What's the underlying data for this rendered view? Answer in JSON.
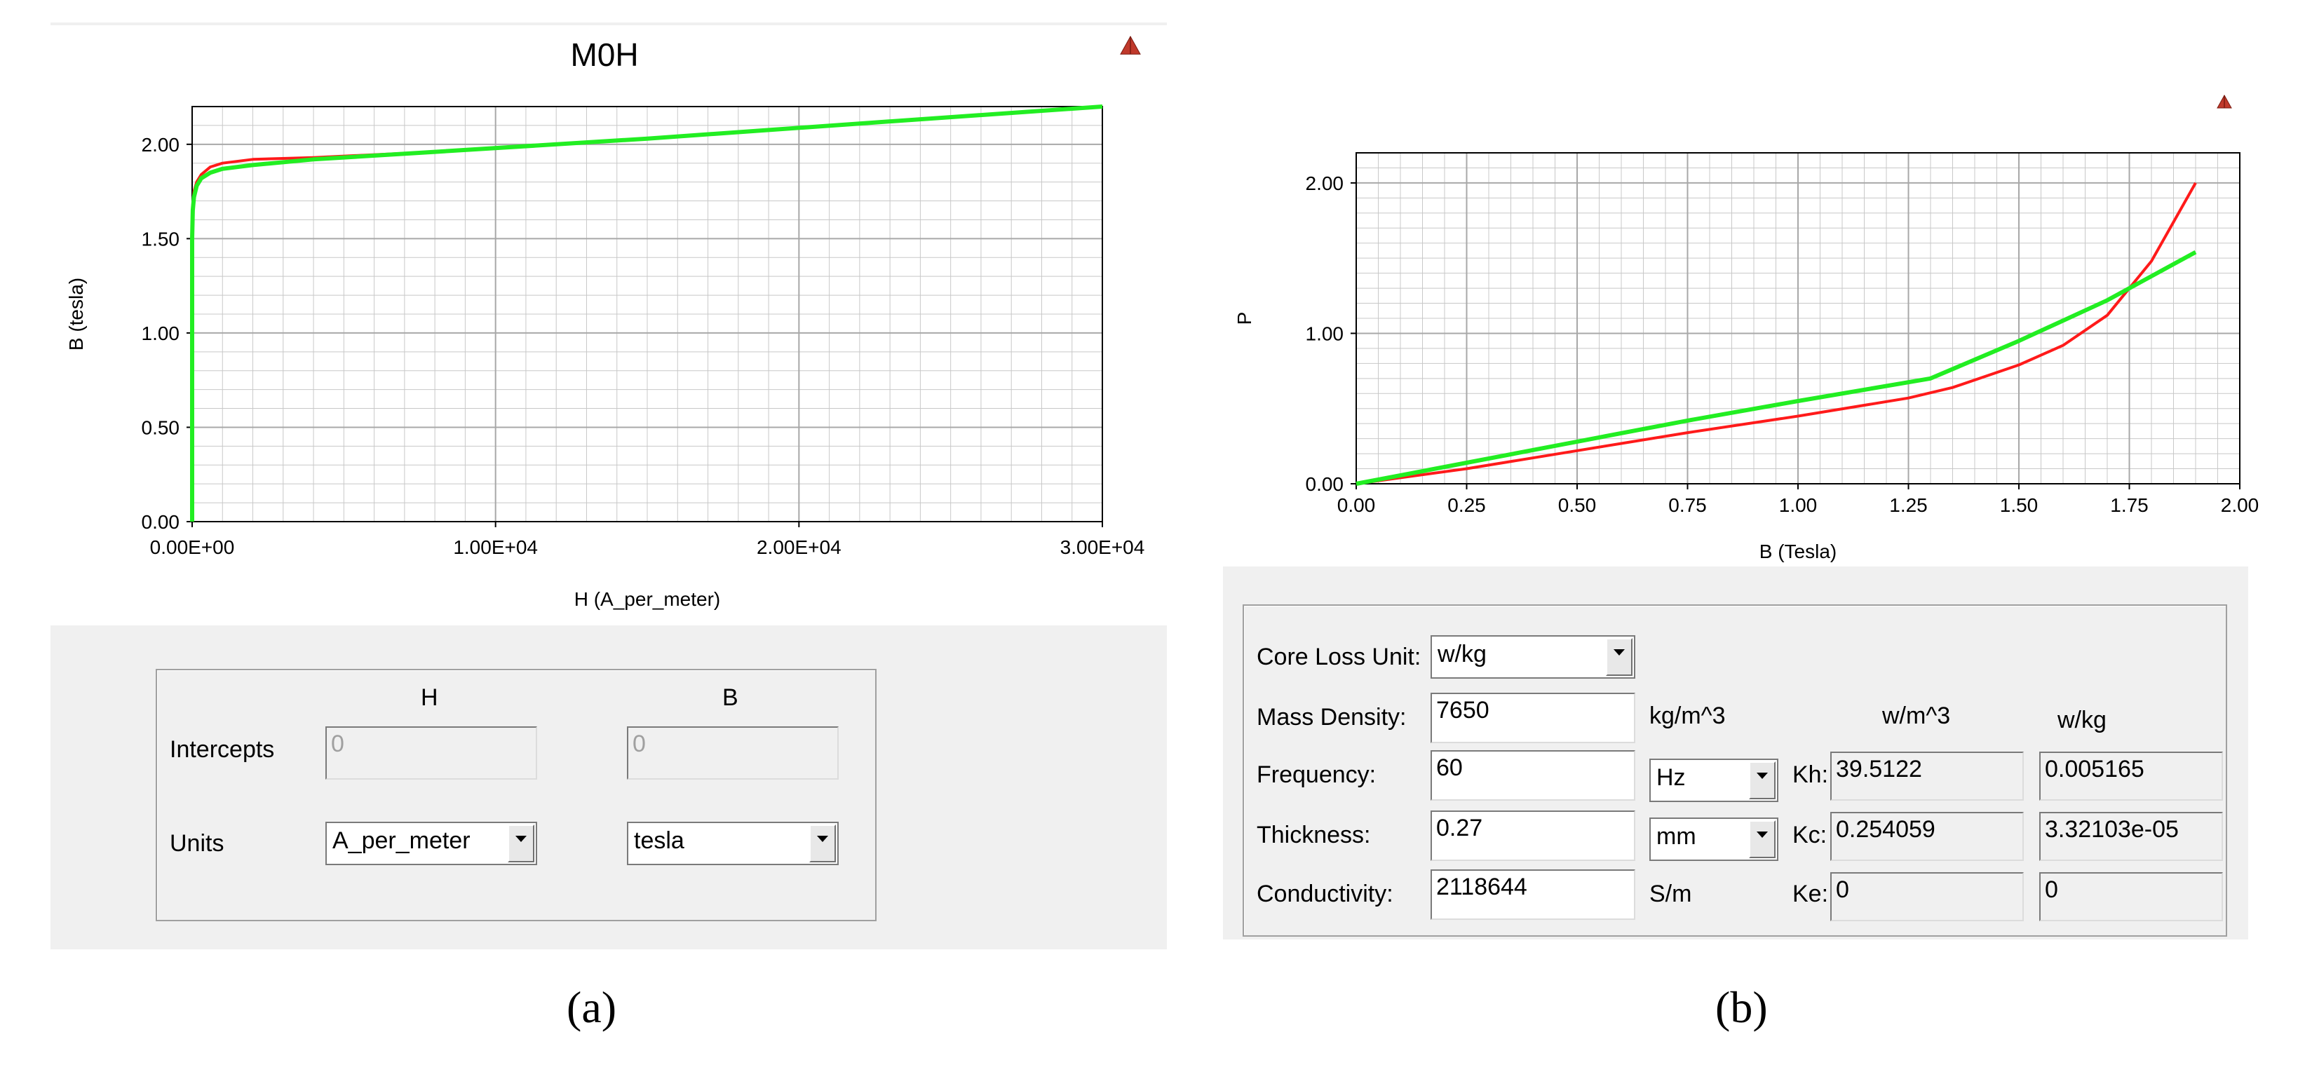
{
  "panel_a": {
    "title": "M0H",
    "caption": "(a)",
    "chart_data": {
      "type": "line",
      "title": "M0H",
      "xlabel": "H (A_per_meter)",
      "ylabel": "B (tesla)",
      "xlim": [
        0,
        30000
      ],
      "ylim": [
        0,
        2.2
      ],
      "xticks": [
        "0.00E+00",
        "1.00E+04",
        "2.00E+04",
        "3.00E+04"
      ],
      "yticks": [
        "0.00",
        "0.50",
        "1.00",
        "1.50",
        "2.00"
      ],
      "grid": true,
      "series": [
        {
          "color": "#ff1a1a",
          "x": [
            0,
            0,
            20,
            60,
            150,
            300,
            600,
            1000,
            2000,
            4000,
            8000,
            15000,
            22000,
            30000
          ],
          "y": [
            0,
            1.5,
            1.68,
            1.75,
            1.8,
            1.84,
            1.88,
            1.9,
            1.92,
            1.93,
            1.96,
            2.03,
            2.11,
            2.2
          ]
        },
        {
          "color": "#22ee22",
          "x": [
            0,
            0,
            20,
            60,
            150,
            300,
            600,
            1000,
            2000,
            4000,
            8000,
            15000,
            22000,
            30000
          ],
          "y": [
            0,
            1.5,
            1.65,
            1.72,
            1.78,
            1.82,
            1.85,
            1.87,
            1.89,
            1.92,
            1.96,
            2.03,
            2.11,
            2.2
          ]
        }
      ]
    },
    "form": {
      "col_h": "H",
      "col_b": "B",
      "intercepts_label": "Intercepts",
      "intercept_h": "0",
      "intercept_b": "0",
      "units_label": "Units",
      "units_h": "A_per_meter",
      "units_b": "tesla"
    }
  },
  "panel_b": {
    "caption": "(b)",
    "chart_data": {
      "type": "line",
      "xlabel": "B (Tesla)",
      "ylabel": "P",
      "xlim": [
        0,
        2.0
      ],
      "ylim": [
        0,
        2.2
      ],
      "xticks": [
        "0.00",
        "0.25",
        "0.50",
        "0.75",
        "1.00",
        "1.25",
        "1.50",
        "1.75",
        "2.00"
      ],
      "yticks": [
        "0.00",
        "1.00",
        "2.00"
      ],
      "grid": true,
      "series": [
        {
          "color": "#ff1a1a",
          "x": [
            0,
            0.25,
            0.5,
            0.75,
            1.0,
            1.25,
            1.35,
            1.5,
            1.6,
            1.7,
            1.8,
            1.9
          ],
          "y": [
            0,
            0.1,
            0.22,
            0.34,
            0.45,
            0.57,
            0.64,
            0.79,
            0.92,
            1.12,
            1.48,
            2.0
          ]
        },
        {
          "color": "#22ee22",
          "x": [
            0,
            0.25,
            0.5,
            0.75,
            1.0,
            1.3,
            1.5,
            1.7,
            1.9
          ],
          "y": [
            0,
            0.14,
            0.28,
            0.42,
            0.55,
            0.7,
            0.95,
            1.22,
            1.54
          ]
        }
      ]
    },
    "form": {
      "core_loss_unit_label": "Core Loss Unit:",
      "core_loss_unit": "w/kg",
      "mass_density_label": "Mass Density:",
      "mass_density": "7650",
      "mass_density_unit": "kg/m^3",
      "frequency_label": "Frequency:",
      "frequency": "60",
      "frequency_unit": "Hz",
      "thickness_label": "Thickness:",
      "thickness": "0.27",
      "thickness_unit": "mm",
      "conductivity_label": "Conductivity:",
      "conductivity": "2118644",
      "conductivity_unit": "S/m",
      "col_wm3": "w/m^3",
      "col_wkg": "w/kg",
      "kh_label": "Kh:",
      "kh_wm3": "39.5122",
      "kh_wkg": "0.005165",
      "kc_label": "Kc:",
      "kc_wm3": "0.254059",
      "kc_wkg": "3.32103e-05",
      "ke_label": "Ke:",
      "ke_wm3": "0",
      "ke_wkg": "0"
    }
  },
  "colors": {
    "red_curve": "#ff1a1a",
    "green_curve": "#22ee22",
    "grid": "#c8c8c8",
    "panel_bg": "#f0f0f0"
  }
}
